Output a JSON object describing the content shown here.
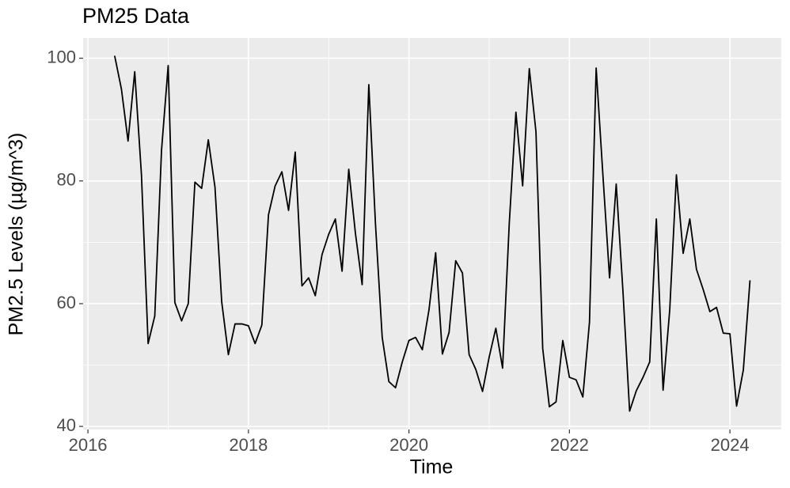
{
  "chart_data": {
    "type": "line",
    "title": "PM25 Data",
    "x_label": "Time",
    "y_label": "PM2.5 Levels (µg/m^3)",
    "x": [
      2016.333,
      2016.417,
      2016.5,
      2016.583,
      2016.667,
      2016.75,
      2016.833,
      2016.917,
      2017.0,
      2017.083,
      2017.167,
      2017.25,
      2017.333,
      2017.417,
      2017.5,
      2017.583,
      2017.667,
      2017.75,
      2017.833,
      2017.917,
      2018.0,
      2018.083,
      2018.167,
      2018.25,
      2018.333,
      2018.417,
      2018.5,
      2018.583,
      2018.667,
      2018.75,
      2018.833,
      2018.917,
      2019.0,
      2019.083,
      2019.167,
      2019.25,
      2019.333,
      2019.417,
      2019.5,
      2019.583,
      2019.667,
      2019.75,
      2019.833,
      2019.917,
      2020.0,
      2020.083,
      2020.167,
      2020.25,
      2020.333,
      2020.417,
      2020.5,
      2020.583,
      2020.667,
      2020.75,
      2020.833,
      2020.917,
      2021.0,
      2021.083,
      2021.167,
      2021.25,
      2021.333,
      2021.417,
      2021.5,
      2021.583,
      2021.667,
      2021.75,
      2021.833,
      2021.917,
      2022.0,
      2022.083,
      2022.167,
      2022.25,
      2022.333,
      2022.417,
      2022.5,
      2022.583,
      2022.667,
      2022.75,
      2022.833,
      2022.917,
      2023.0,
      2023.083,
      2023.167,
      2023.25,
      2023.333,
      2023.417,
      2023.5,
      2023.583,
      2023.667,
      2023.75,
      2023.833,
      2023.917,
      2024.0,
      2024.083,
      2024.167,
      2024.25
    ],
    "series": [
      {
        "name": "PM25",
        "color": "#000000",
        "values": [
          100.4,
          95,
          86.5,
          97.8,
          81,
          53.5,
          58,
          85,
          98.8,
          60.2,
          57.2,
          60,
          79.8,
          78.8,
          86.7,
          79,
          60.3,
          51.7,
          56.7,
          56.7,
          56.4,
          53.5,
          56.5,
          74.5,
          79.2,
          81.5,
          75.2,
          84.7,
          62.9,
          64.2,
          61.3,
          68,
          71.3,
          73.8,
          65.3,
          81.9,
          71.5,
          63.1,
          95.7,
          73,
          54.5,
          47.3,
          46.3,
          50.5,
          54,
          54.5,
          52.5,
          59,
          68.3,
          51.8,
          55.3,
          67,
          65,
          51.7,
          49.3,
          45.7,
          51.3,
          56,
          49.5,
          73,
          91.2,
          79.2,
          98.3,
          88,
          52.7,
          43.2,
          44,
          54,
          48,
          47.6,
          44.8,
          57,
          98.4,
          81,
          64.2,
          79.5,
          62,
          42.5,
          45.8,
          48,
          50.5,
          73.8,
          45.9,
          59,
          81,
          68.2,
          73.8,
          65.6,
          62.3,
          58.7,
          59.4,
          55.2,
          55.1,
          43.3,
          49.2,
          63.8
        ]
      }
    ],
    "xlim": [
      2015.94,
      2024.64
    ],
    "xticks": [
      2016,
      2018,
      2020,
      2022,
      2024
    ],
    "x_minor_ticks": [
      2017,
      2019,
      2021,
      2023
    ],
    "ylim": [
      39.5,
      103.3
    ],
    "yticks": [
      40,
      60,
      80,
      100
    ],
    "y_minor_ticks": [
      50,
      70,
      90
    ],
    "grid": true
  }
}
